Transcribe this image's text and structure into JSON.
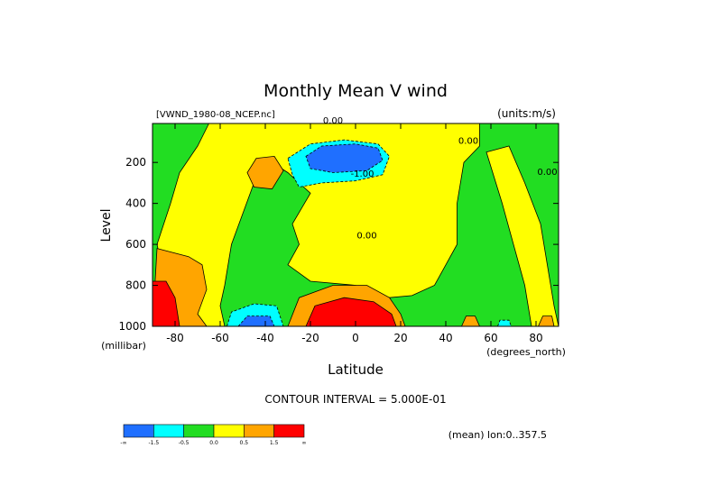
{
  "chart_data": {
    "type": "heatmap",
    "title": "Monthly Mean V wind",
    "dataset_label": "[VWND_1980-08_NCEP.nc]",
    "units_label": "(units:m/s)",
    "xlabel": "Latitude",
    "x_units": "(degrees_north)",
    "ylabel": "Level",
    "y_units": "(millibar)",
    "xlim": [
      -90,
      90
    ],
    "ylim": [
      1000,
      10
    ],
    "y_inverted": true,
    "x_ticks": [
      -80,
      -60,
      -40,
      -20,
      0,
      20,
      40,
      60,
      80
    ],
    "y_ticks": [
      200,
      400,
      600,
      800,
      1000
    ],
    "contour_interval_text": "CONTOUR INTERVAL = 5.000E-01",
    "footnote": "(mean) lon:0..357.5",
    "contour_labels": [
      {
        "text": "0.00",
        "lat": -10,
        "lev": 10
      },
      {
        "text": "0.00",
        "lat": 50,
        "lev": 110
      },
      {
        "text": "-1.00",
        "lat": 3,
        "lev": 270
      },
      {
        "text": "0.00",
        "lat": 5,
        "lev": 570
      },
      {
        "text": "0.00",
        "lat": 85,
        "lev": 260
      }
    ],
    "colorbar": {
      "colors": [
        "#1f6fff",
        "#00ffff",
        "#22dd22",
        "#ffff00",
        "#ffa500",
        "#ff0000"
      ],
      "tick_labels": [
        "-∞",
        "-1.5",
        "-0.5",
        "0.0",
        "0.5",
        "1.5",
        "∞"
      ]
    },
    "regions": [
      {
        "level": 2,
        "pts": [
          [
            -90,
            10
          ],
          [
            90,
            10
          ],
          [
            90,
            1000
          ],
          [
            -90,
            1000
          ]
        ]
      },
      {
        "level": 3,
        "pts": [
          [
            -65,
            10
          ],
          [
            55,
            10
          ],
          [
            55,
            120
          ],
          [
            48,
            200
          ],
          [
            45,
            400
          ],
          [
            45,
            600
          ],
          [
            40,
            700
          ],
          [
            35,
            800
          ],
          [
            25,
            850
          ],
          [
            15,
            860
          ],
          [
            0,
            800
          ],
          [
            -20,
            780
          ],
          [
            -30,
            700
          ],
          [
            -25,
            600
          ],
          [
            -28,
            500
          ],
          [
            -20,
            350
          ],
          [
            -30,
            250
          ],
          [
            -40,
            180
          ],
          [
            -45,
            300
          ],
          [
            -50,
            450
          ],
          [
            -55,
            600
          ],
          [
            -58,
            800
          ],
          [
            -60,
            900
          ],
          [
            -58,
            1000
          ],
          [
            -80,
            1000
          ],
          [
            -88,
            600
          ],
          [
            -82,
            400
          ],
          [
            -78,
            250
          ],
          [
            -70,
            120
          ]
        ]
      },
      {
        "level": 3,
        "pts": [
          [
            58,
            150
          ],
          [
            68,
            120
          ],
          [
            75,
            300
          ],
          [
            82,
            500
          ],
          [
            85,
            700
          ],
          [
            88,
            900
          ],
          [
            90,
            1000
          ],
          [
            78,
            1000
          ],
          [
            75,
            800
          ],
          [
            70,
            600
          ],
          [
            65,
            400
          ]
        ]
      },
      {
        "level": 4,
        "pts": [
          [
            -44,
            180
          ],
          [
            -36,
            170
          ],
          [
            -32,
            240
          ],
          [
            -37,
            330
          ],
          [
            -45,
            320
          ],
          [
            -48,
            250
          ]
        ]
      },
      {
        "level": 4,
        "pts": [
          [
            -88,
            620
          ],
          [
            -74,
            660
          ],
          [
            -68,
            700
          ],
          [
            -66,
            820
          ],
          [
            -70,
            940
          ],
          [
            -66,
            1000
          ],
          [
            -90,
            1000
          ]
        ]
      },
      {
        "level": 4,
        "pts": [
          [
            -30,
            1000
          ],
          [
            -25,
            860
          ],
          [
            -10,
            800
          ],
          [
            5,
            800
          ],
          [
            15,
            860
          ],
          [
            20,
            940
          ],
          [
            22,
            1000
          ]
        ]
      },
      {
        "level": 4,
        "pts": [
          [
            47,
            1000
          ],
          [
            49,
            950
          ],
          [
            53,
            950
          ],
          [
            55,
            1000
          ]
        ]
      },
      {
        "level": 4,
        "pts": [
          [
            81,
            1000
          ],
          [
            83,
            950
          ],
          [
            87,
            950
          ],
          [
            88,
            1000
          ]
        ]
      },
      {
        "level": 5,
        "pts": [
          [
            -90,
            780
          ],
          [
            -84,
            780
          ],
          [
            -80,
            860
          ],
          [
            -78,
            1000
          ],
          [
            -90,
            1000
          ]
        ]
      },
      {
        "level": 5,
        "pts": [
          [
            -22,
            1000
          ],
          [
            -18,
            900
          ],
          [
            -5,
            860
          ],
          [
            8,
            880
          ],
          [
            16,
            940
          ],
          [
            18,
            1000
          ]
        ]
      },
      {
        "level": 1,
        "pts": [
          [
            -30,
            180
          ],
          [
            -20,
            110
          ],
          [
            -5,
            90
          ],
          [
            10,
            110
          ],
          [
            15,
            170
          ],
          [
            12,
            260
          ],
          [
            0,
            290
          ],
          [
            -15,
            300
          ],
          [
            -25,
            320
          ],
          [
            -28,
            260
          ]
        ]
      },
      {
        "level": 1,
        "pts": [
          [
            -57,
            1000
          ],
          [
            -55,
            930
          ],
          [
            -45,
            890
          ],
          [
            -35,
            900
          ],
          [
            -32,
            1000
          ]
        ]
      },
      {
        "level": 1,
        "pts": [
          [
            63,
            1000
          ],
          [
            64,
            970
          ],
          [
            68,
            970
          ],
          [
            69,
            1000
          ]
        ]
      },
      {
        "level": 0,
        "pts": [
          [
            -22,
            170
          ],
          [
            -15,
            120
          ],
          [
            0,
            110
          ],
          [
            10,
            130
          ],
          [
            12,
            190
          ],
          [
            5,
            240
          ],
          [
            -10,
            250
          ],
          [
            -20,
            230
          ]
        ]
      },
      {
        "level": 0,
        "pts": [
          [
            -52,
            1000
          ],
          [
            -48,
            950
          ],
          [
            -38,
            950
          ],
          [
            -36,
            1000
          ]
        ]
      }
    ]
  }
}
